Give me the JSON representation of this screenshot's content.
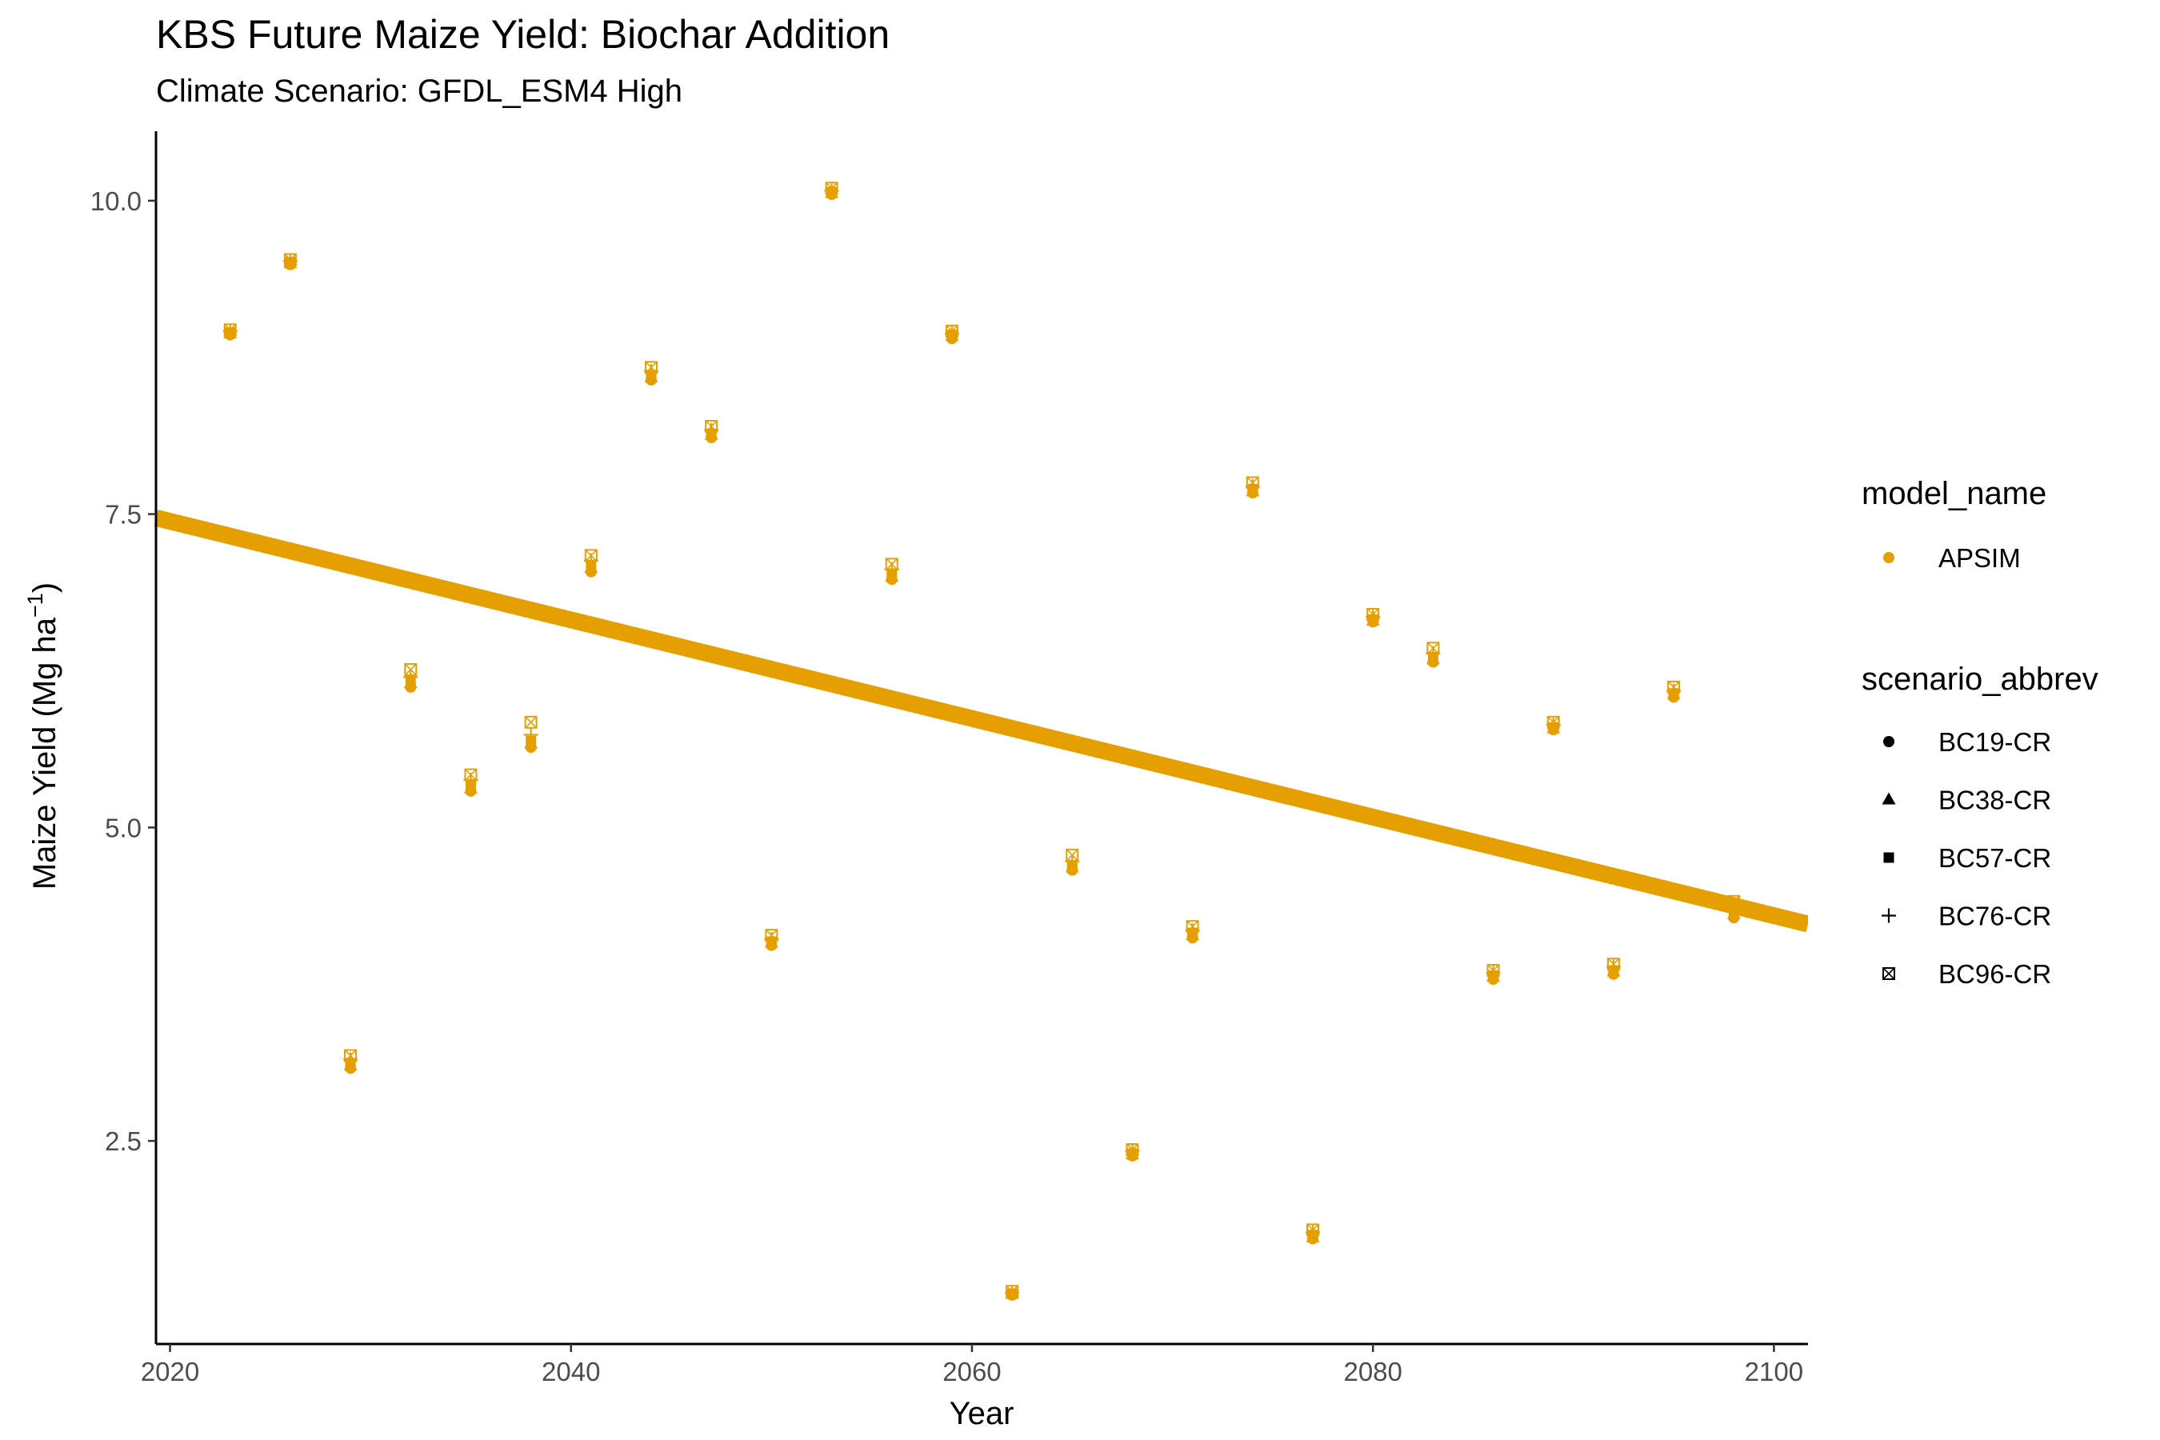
{
  "title": "KBS Future Maize Yield: Biochar Addition",
  "subtitle": "Climate Scenario: GFDL_ESM4 High",
  "legend": {
    "model_title": "model_name",
    "model_items": [
      {
        "label": "APSIM",
        "color": "#E69F00",
        "shape": "circle"
      }
    ],
    "scenario_title": "scenario_abbrev",
    "scenario_items": [
      {
        "label": "BC19-CR",
        "shape": "circle"
      },
      {
        "label": "BC38-CR",
        "shape": "triangle"
      },
      {
        "label": "BC57-CR",
        "shape": "square"
      },
      {
        "label": "BC76-CR",
        "shape": "plus"
      },
      {
        "label": "BC96-CR",
        "shape": "boxcross"
      }
    ]
  },
  "chart_data": {
    "type": "scatter",
    "xlabel": "Year",
    "ylabel": "Maize Yield (Mg ha",
    "ylabel_superscript": "−1",
    "ylabel_close": ")",
    "xlim": [
      2019.3,
      2101.7
    ],
    "ylim": [
      0.88,
      10.58
    ],
    "x_ticks": [
      2020,
      2040,
      2060,
      2080,
      2100
    ],
    "y_ticks": [
      2.5,
      5.0,
      7.5,
      10.0
    ],
    "y_tick_labels": [
      "2.5",
      "5.0",
      "7.5",
      "10.0"
    ],
    "grid": false,
    "color": "#E69F00",
    "series_names": [
      "BC19-CR",
      "BC38-CR",
      "BC57-CR",
      "BC76-CR",
      "BC96-CR"
    ],
    "x": [
      2023,
      2026,
      2029,
      2032,
      2035,
      2038,
      2041,
      2044,
      2047,
      2050,
      2053,
      2056,
      2059,
      2062,
      2065,
      2068,
      2071,
      2074,
      2077,
      2080,
      2083,
      2086,
      2089,
      2092,
      2095,
      2098
    ],
    "y": [
      [
        8.93,
        9.49,
        3.08,
        6.12,
        5.29,
        5.64,
        7.04,
        8.57,
        8.11,
        4.06,
        10.05,
        6.98,
        8.9,
        1.27,
        4.66,
        2.38,
        4.12,
        7.67,
        1.72,
        6.64,
        6.32,
        3.79,
        5.78,
        3.83,
        6.04,
        4.28
      ],
      [
        8.94,
        9.5,
        3.1,
        6.15,
        5.31,
        5.67,
        7.07,
        8.59,
        8.13,
        4.08,
        10.06,
        7.0,
        8.92,
        1.28,
        4.68,
        2.39,
        4.14,
        7.68,
        1.73,
        6.65,
        6.34,
        3.81,
        5.79,
        3.85,
        6.06,
        4.31
      ],
      [
        8.95,
        9.51,
        3.12,
        6.17,
        5.33,
        5.69,
        7.09,
        8.61,
        8.14,
        4.09,
        10.07,
        7.02,
        8.93,
        1.28,
        4.7,
        2.4,
        4.16,
        7.7,
        1.75,
        6.66,
        6.36,
        3.82,
        5.8,
        3.86,
        6.07,
        4.33
      ],
      [
        8.96,
        9.52,
        3.15,
        6.2,
        5.38,
        5.74,
        7.13,
        8.64,
        8.17,
        4.11,
        10.08,
        7.06,
        8.94,
        1.29,
        4.73,
        2.42,
        4.18,
        7.72,
        1.77,
        6.68,
        6.39,
        3.84,
        5.82,
        3.89,
        6.09,
        4.37
      ],
      [
        8.97,
        9.53,
        3.18,
        6.26,
        5.42,
        5.84,
        7.17,
        8.67,
        8.2,
        4.14,
        10.1,
        7.1,
        8.96,
        1.3,
        4.78,
        2.43,
        4.21,
        7.75,
        1.79,
        6.7,
        6.43,
        3.86,
        5.84,
        3.91,
        6.12,
        4.41
      ]
    ],
    "trend": {
      "x": [
        2019.3,
        2101.7
      ],
      "y": [
        7.47,
        4.23
      ]
    }
  }
}
